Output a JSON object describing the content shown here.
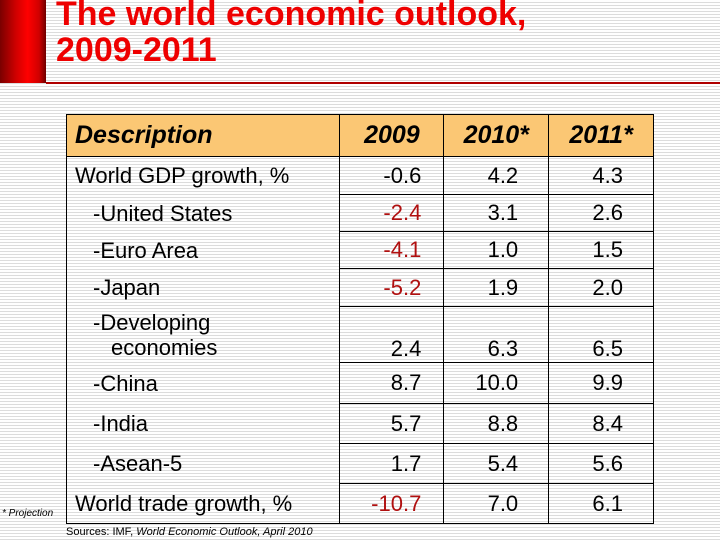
{
  "title": {
    "line1": "The world economic outlook,",
    "line2": "2009-2011"
  },
  "colors": {
    "title": "#ee0000",
    "header_bg": "#fbc774",
    "negative": "#b01010"
  },
  "table": {
    "headers": [
      "Description",
      "2009",
      "2010*",
      "2011*"
    ],
    "rows": [
      {
        "label": "World GDP growth, %",
        "values": [
          "-0.6",
          "4.2",
          "4.3"
        ]
      },
      {
        "label": "-United States",
        "values": [
          "-2.4",
          "3.1",
          "2.6"
        ]
      },
      {
        "label": "-Euro Area",
        "values": [
          "-4.1",
          "1.0",
          "1.5"
        ]
      },
      {
        "label": "-Japan",
        "values": [
          "-5.2",
          "1.9",
          "2.0"
        ]
      },
      {
        "label": "-Developing",
        "label2": "economies",
        "values": [
          "2.4",
          "6.3",
          "6.5"
        ]
      },
      {
        "label": "-China",
        "values": [
          "8.7",
          "10.0",
          "9.9"
        ]
      },
      {
        "label": "-India",
        "values": [
          "5.7",
          "8.8",
          "8.4"
        ]
      },
      {
        "label": "-Asean-5",
        "values": [
          "1.7",
          "5.4",
          "5.6"
        ]
      },
      {
        "label": "World trade growth, %",
        "values": [
          "-10.7",
          "7.0",
          "6.1"
        ]
      }
    ]
  },
  "footnote": "* Projection",
  "sources": {
    "prefix": "Sources: IMF, ",
    "title": "World Economic Outlook, April 2010"
  }
}
